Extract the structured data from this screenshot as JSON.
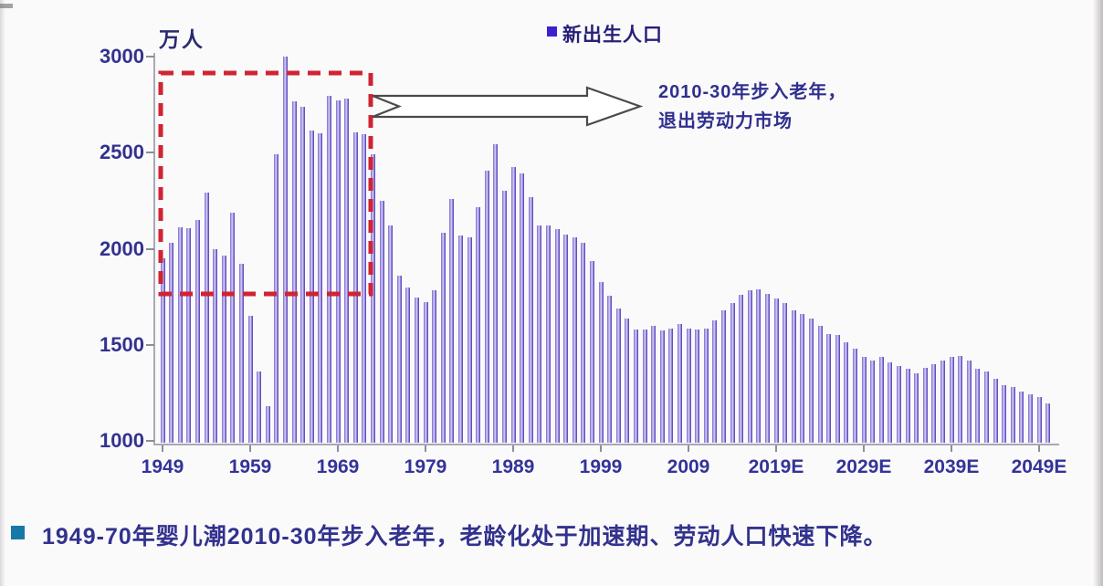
{
  "chart_data": {
    "type": "bar",
    "title": "",
    "unit_label": "万人",
    "legend_marker_color": "#3a22cf",
    "legend_position": "top-center",
    "grid": "off",
    "y_ticks": [
      1000,
      1500,
      2000,
      2500,
      3000
    ],
    "ylim": [
      1000,
      3050
    ],
    "x_tick_labels": [
      "1949",
      "1959",
      "1969",
      "1979",
      "1989",
      "1999",
      "2009",
      "2019E",
      "2029E",
      "2039E",
      "2049E"
    ],
    "series": [
      {
        "name": "新出生人口",
        "start_year": 1949,
        "end_year": 2050,
        "values": [
          1950,
          2030,
          2110,
          2105,
          2150,
          2290,
          2000,
          1965,
          2190,
          1920,
          1650,
          1360,
          1180,
          2490,
          3000,
          2765,
          2740,
          2615,
          2600,
          2795,
          2770,
          2780,
          2605,
          2595,
          2490,
          2250,
          2120,
          1860,
          1800,
          1745,
          1720,
          1785,
          2085,
          2260,
          2070,
          2060,
          2215,
          2405,
          2545,
          2300,
          2425,
          2390,
          2270,
          2120,
          2120,
          2100,
          2075,
          2060,
          2030,
          1935,
          1825,
          1755,
          1690,
          1635,
          1580,
          1580,
          1600,
          1575,
          1585,
          1610,
          1585,
          1580,
          1585,
          1625,
          1680,
          1715,
          1760,
          1785,
          1790,
          1765,
          1740,
          1715,
          1680,
          1660,
          1635,
          1600,
          1555,
          1550,
          1515,
          1480,
          1435,
          1420,
          1435,
          1410,
          1390,
          1375,
          1350,
          1380,
          1400,
          1420,
          1435,
          1440,
          1420,
          1375,
          1360,
          1325,
          1290,
          1280,
          1255,
          1240,
          1230,
          1195
        ]
      }
    ],
    "highlight_box": {
      "from_year": 1949,
      "to_year": 1972,
      "top_value": 2925,
      "bottom_value": 1770,
      "color": "#cf2433"
    },
    "annotation": {
      "line1": "2010-30年步入老年，",
      "line2": "退出劳动力市场",
      "arrow_color": "#4a4a4a"
    },
    "axis_text_color": "#333399"
  },
  "footer": {
    "bullet_text": "1949-70年婴儿潮2010-30年步入老年，老龄化处于加速期、劳动人口快速下降。",
    "bullet_color": "#1878a8",
    "text_color": "#32328e"
  }
}
